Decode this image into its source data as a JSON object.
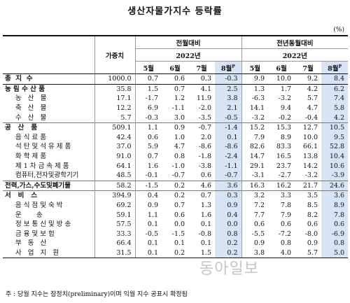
{
  "title": "생산자물가지수 등락률",
  "unit": "(%)",
  "header": {
    "weight_label": "가중치",
    "group_mom": "전월대비",
    "group_yoy": "전년동월대비",
    "year_mom": "2022년",
    "year_yoy": "2022년",
    "months": [
      "5월",
      "6월",
      "7월",
      "8월"
    ],
    "prelim_mark": "P"
  },
  "rows": [
    {
      "label": "총  지  수",
      "weight": "1000.0",
      "mom": [
        "0.7",
        "0.6",
        "0.3",
        "-0.3"
      ],
      "yoy": [
        "9.9",
        "10.0",
        "9.2",
        "8.4"
      ]
    },
    {
      "label": "농 림 수 산 품",
      "weight": "35.8",
      "mom": [
        "1.5",
        "0.7",
        "4.1",
        "2.5"
      ],
      "yoy": [
        "1.3",
        "1.7",
        "4.2",
        "6.2"
      ]
    },
    {
      "label": "농   산   물",
      "weight": "17.1",
      "mom": [
        "-1.7",
        "1.2",
        "11.9",
        "3.8"
      ],
      "yoy": [
        "-6.3",
        "-3.2",
        "5.7",
        "7.4"
      ]
    },
    {
      "label": "축   산   물",
      "weight": "12.2",
      "mom": [
        "6.9",
        "-1.1",
        "-2.0",
        "2.1"
      ],
      "yoy": [
        "14.1",
        "9.4",
        "4.7",
        "5.8"
      ]
    },
    {
      "label": "수   산   물",
      "weight": "5.7",
      "mom": [
        "-0.3",
        "3.0",
        "-3.5",
        "-0.5"
      ],
      "yoy": [
        "-3.2",
        "-0.2",
        "-0.4",
        "4.2"
      ]
    },
    {
      "label": "공   산   품",
      "weight": "509.1",
      "mom": [
        "1.1",
        "0.9",
        "-0.7",
        "-1.4"
      ],
      "yoy": [
        "15.2",
        "15.3",
        "12.7",
        "10.5"
      ]
    },
    {
      "label": "음 식 료 품",
      "weight": "42.4",
      "mom": [
        "0.6",
        "1.0",
        "2.0",
        "0.1"
      ],
      "yoy": [
        "7.9",
        "8.9",
        "10.0",
        "9.5"
      ]
    },
    {
      "label": "석 탄 및 석 유 제 품",
      "weight": "37.0",
      "mom": [
        "5.9",
        "4.7",
        "-8.6",
        "-8.6"
      ],
      "yoy": [
        "82.6",
        "83.3",
        "66.1",
        "52.8"
      ]
    },
    {
      "label": "화 학 제 품",
      "weight": "91.0",
      "mom": [
        "0.7",
        "0.8",
        "-1.8",
        "-2.4"
      ],
      "yoy": [
        "14.7",
        "16.5",
        "13.8",
        "10.4"
      ]
    },
    {
      "label": "제 1 차 금 속 제 품",
      "weight": "64.1",
      "mom": [
        "1.6",
        "-1.0",
        "-3.8",
        "-1.1"
      ],
      "yoy": [
        "29.1",
        "23.7",
        "14.2",
        "10.6"
      ]
    },
    {
      "label": "컴퓨터,전자및광학기기",
      "weight": "48.5",
      "mom": [
        "-0.1",
        "-0.7",
        "0.6",
        "-0.7"
      ],
      "yoy": [
        "-3.1",
        "-2.7",
        "-3.2",
        "-3.9"
      ]
    },
    {
      "label": "전력,가스,수도및폐기물",
      "weight": "58.2",
      "mom": [
        "-1.5",
        "0.2",
        "4.6",
        "3.6"
      ],
      "yoy": [
        "16.3",
        "16.2",
        "21.7",
        "24.6"
      ]
    },
    {
      "label": "서   비   스",
      "weight": "394.9",
      "mom": [
        "0.4",
        "0.2",
        "0.7",
        "0.3"
      ],
      "yoy": [
        "3.2",
        "3.3",
        "3.5",
        "3.6"
      ]
    },
    {
      "label": "음 식 점 및 숙 박",
      "weight": "69.2",
      "mom": [
        "0.9",
        "0.7",
        "1.3",
        "0.9"
      ],
      "yoy": [
        "7.2",
        "7.8",
        "8.5",
        "8.9"
      ]
    },
    {
      "label": "운       송",
      "weight": "59.1",
      "mom": [
        "1.1",
        "0.6",
        "1.6",
        "0.4"
      ],
      "yoy": [
        "7.7",
        "7.9",
        "8.2",
        "7.8"
      ]
    },
    {
      "label": "정 보 통 신 및 방 송",
      "weight": "57.5",
      "mom": [
        "0.1",
        "0.0",
        "0.1",
        "0.0"
      ],
      "yoy": [
        "0.6",
        "0.6",
        "0.6",
        "0.6"
      ]
    },
    {
      "label": "금 융 및 보 험",
      "weight": "33.3",
      "mom": [
        "-0.5",
        "-1.5",
        "-0.8",
        "0.8"
      ],
      "yoy": [
        "-5.5",
        "-7.2",
        "-8.0",
        "-6.9"
      ]
    },
    {
      "label": "부   동   산",
      "weight": "66.4",
      "mom": [
        "0.1",
        "0.1",
        "0.1",
        "0.2"
      ],
      "yoy": [
        "0.9",
        "0.8",
        "0.9",
        "0.8"
      ]
    },
    {
      "label": "사   업   지   원",
      "weight": "31.5",
      "mom": [
        "0.1",
        "0.2",
        "1.5",
        "0.2"
      ],
      "yoy": [
        "3.8",
        "4.0",
        "5.7",
        "5.0"
      ]
    }
  ],
  "footnote": "주 : 당월 지수는 잠정치(preliminary)이며 익월 지수 공표시 확정됨",
  "watermark": "동아일보"
}
